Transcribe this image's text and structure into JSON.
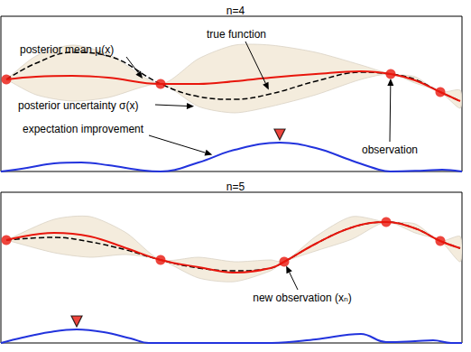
{
  "chart_data": [
    {
      "type": "line",
      "title": "n=4",
      "xlim": [
        0,
        511
      ],
      "ylim": [
        0,
        172
      ],
      "tick_labels": false,
      "grid": false,
      "series": [
        {
          "type": "band",
          "color": "#f4ecdd",
          "x": [
            6,
            39,
            79,
            119,
            177,
            219,
            259,
            299,
            349,
            399,
            432,
            459,
            487,
            509
          ],
          "upper": [
            102,
            128,
            140,
            130,
            97,
            125,
            140,
            140,
            132,
            118,
            108,
            105,
            88,
            90
          ],
          "lower": [
            102,
            85,
            78,
            82,
            97,
            72,
            65,
            72,
            85,
            102,
            108,
            98,
            88,
            70
          ]
        },
        {
          "type": "line",
          "color": "#000000",
          "line_style": "dashed",
          "x": [
            6,
            39,
            79,
            119,
            177,
            219,
            259,
            299,
            349,
            399,
            432,
            459,
            487,
            509
          ],
          "values": [
            102,
            120,
            132,
            128,
            97,
            83,
            80,
            86,
            100,
            110,
            108,
            102,
            88,
            78
          ]
        },
        {
          "type": "line",
          "color": "#e8160c",
          "line_style": "solid",
          "x": [
            6,
            39,
            79,
            119,
            177,
            219,
            259,
            299,
            349,
            399,
            432,
            459,
            487,
            509
          ],
          "values": [
            102,
            105,
            106,
            104,
            97,
            97,
            100,
            104,
            108,
            111,
            108,
            101,
            88,
            78
          ]
        },
        {
          "type": "line",
          "color": "#2233dd",
          "line_style": "solid",
          "x": [
            0,
            29,
            59,
            89,
            119,
            159,
            177,
            219,
            259,
            309,
            349,
            389,
            419,
            432,
            469,
            489,
            511
          ],
          "values": [
            0,
            4,
            9,
            10,
            7,
            1,
            0,
            10,
            24,
            32,
            26,
            12,
            2,
            0,
            1,
            2,
            0
          ]
        },
        {
          "type": "scatter",
          "color": "#e8160c",
          "marker": "circle",
          "x": [
            6,
            177,
            432,
            487
          ],
          "values": [
            102,
            97,
            108,
            88
          ]
        }
      ],
      "next_sample": {
        "x": 309,
        "y": 32,
        "color": "#e8160c",
        "marker": "triangle"
      },
      "annotations": [
        {
          "text": "posterior mean μ(x)",
          "x": 160,
          "y": 99
        },
        {
          "text": "true function",
          "x": 299,
          "y": 86
        },
        {
          "text": "posterior uncertainty σ(x)",
          "x": 219,
          "y": 72
        },
        {
          "text": "expectation improvement",
          "x": 239,
          "y": 17
        },
        {
          "text": "observation",
          "x": 432,
          "y": 108
        }
      ]
    },
    {
      "type": "line",
      "title": "n=5",
      "xlim": [
        0,
        511
      ],
      "ylim": [
        0,
        167
      ],
      "tick_labels": false,
      "grid": false,
      "series": [
        {
          "type": "band",
          "color": "#f4ecdd",
          "x": [
            6,
            59,
            99,
            139,
            177,
            219,
            259,
            299,
            314,
            349,
            389,
            427,
            459,
            487,
            509
          ],
          "upper": [
            114,
            137,
            140,
            122,
            92,
            95,
            90,
            92,
            90,
            118,
            140,
            134,
            132,
            113,
            118
          ],
          "lower": [
            114,
            100,
            95,
            98,
            92,
            72,
            68,
            80,
            90,
            102,
            115,
            134,
            122,
            113,
            90
          ]
        },
        {
          "type": "line",
          "color": "#000000",
          "line_style": "dashed",
          "x": [
            6,
            59,
            99,
            139,
            177,
            219,
            259,
            299,
            314,
            349,
            389,
            427,
            459,
            487,
            509
          ],
          "values": [
            114,
            117,
            112,
            103,
            92,
            83,
            80,
            83,
            90,
            110,
            128,
            134,
            127,
            113,
            105
          ]
        },
        {
          "type": "line",
          "color": "#e8160c",
          "line_style": "solid",
          "x": [
            6,
            59,
            99,
            139,
            177,
            219,
            259,
            299,
            314,
            349,
            389,
            427,
            459,
            487,
            509
          ],
          "values": [
            114,
            122,
            118,
            105,
            92,
            84,
            78,
            83,
            90,
            110,
            128,
            134,
            127,
            113,
            105
          ]
        },
        {
          "type": "line",
          "color": "#2233dd",
          "line_style": "solid",
          "x": [
            0,
            24,
            54,
            84,
            114,
            144,
            164,
            177,
            300,
            349,
            399,
            427,
            459,
            479,
            499,
            511
          ],
          "values": [
            0,
            6,
            12,
            15,
            12,
            5,
            0,
            0,
            0,
            4,
            10,
            1,
            2,
            3,
            0,
            0
          ]
        },
        {
          "type": "scatter",
          "color": "#e8160c",
          "marker": "circle",
          "x": [
            6,
            177,
            314,
            427,
            487
          ],
          "values": [
            114,
            92,
            90,
            134,
            113
          ]
        }
      ],
      "next_sample": {
        "x": 84,
        "y": 15,
        "color": "#e8160c",
        "marker": "triangle"
      },
      "annotations": [
        {
          "text": "new observation (xₙ)",
          "x": 314,
          "y": 90
        }
      ]
    }
  ]
}
